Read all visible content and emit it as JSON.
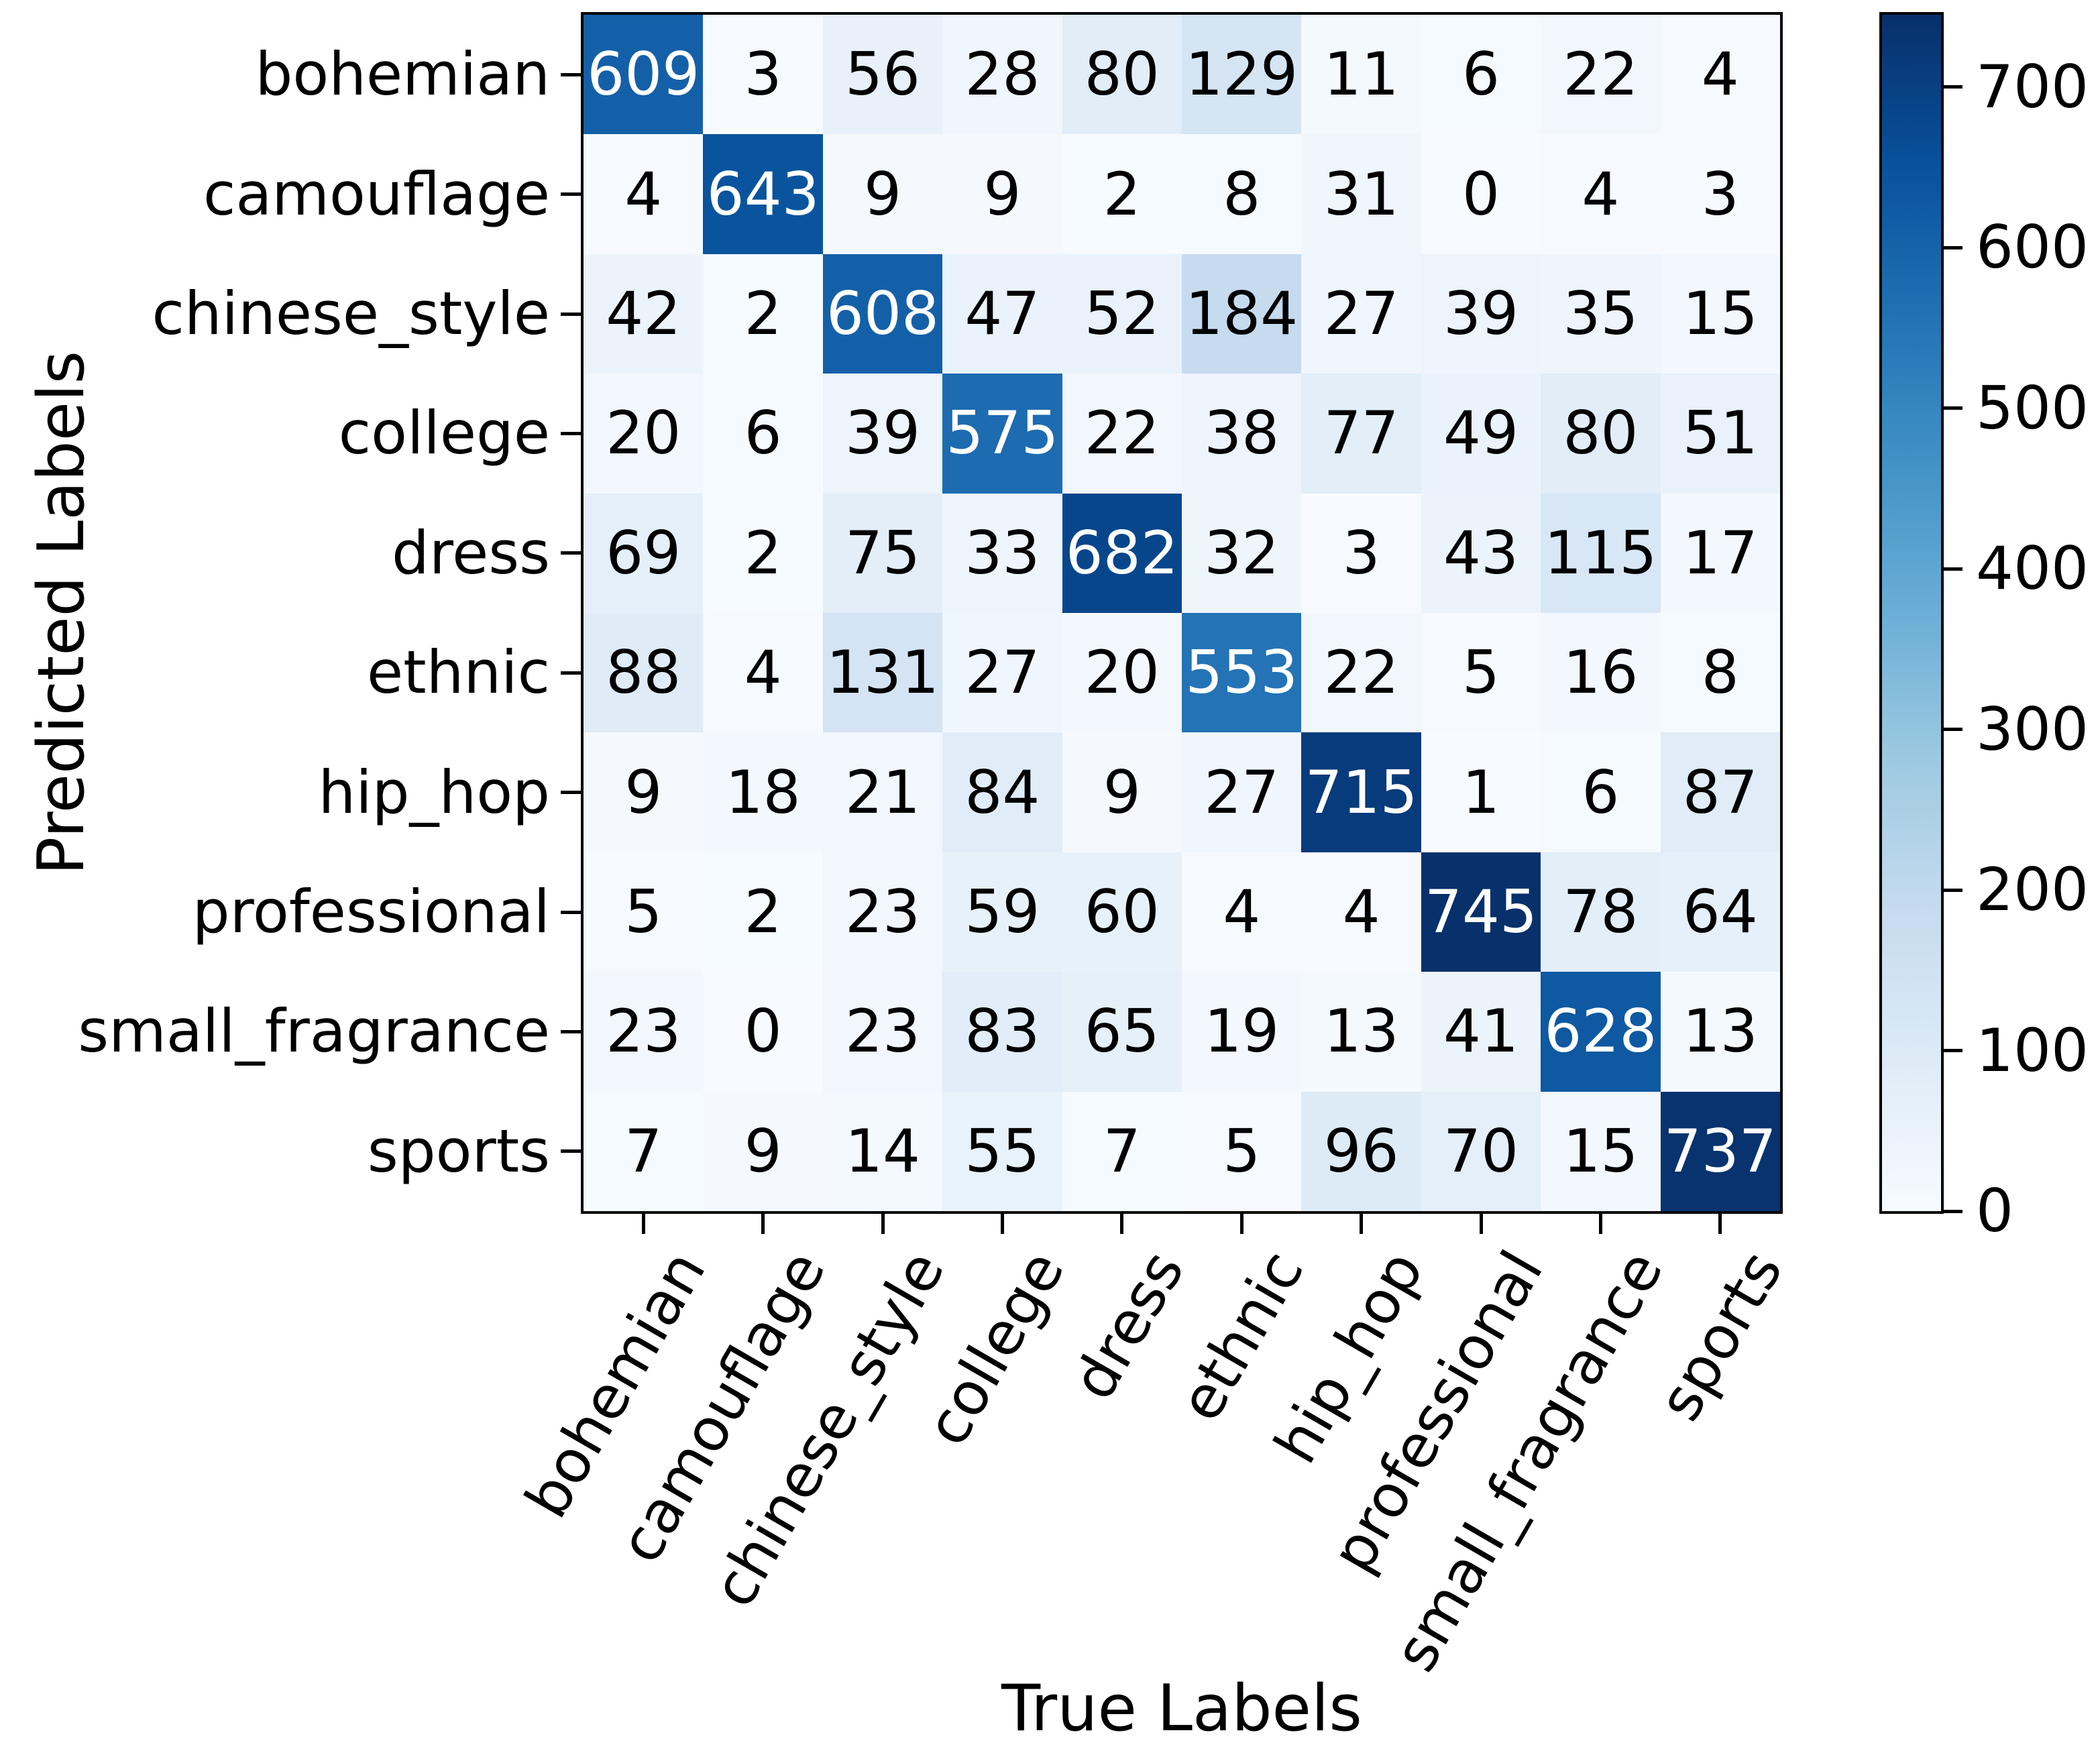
{
  "chart_data": {
    "type": "heatmap",
    "subtype": "confusion-matrix",
    "title": "",
    "xlabel": "True Labels",
    "ylabel": "Predicted Labels",
    "categories": [
      "bohemian",
      "camouflage",
      "chinese_style",
      "college",
      "dress",
      "ethnic",
      "hip_hop",
      "professional",
      "small_fragrance",
      "sports"
    ],
    "x_tick_labels": [
      "bohemian",
      "camouflage",
      "chinese_style",
      "college",
      "dress",
      "ethnic",
      "hip_hop",
      "professional",
      "small_fragrance",
      "sports"
    ],
    "y_tick_labels": [
      "bohemian",
      "camouflage",
      "chinese_style",
      "college",
      "dress",
      "ethnic",
      "hip_hop",
      "professional",
      "small_fragrance",
      "sports"
    ],
    "matrix": [
      [
        609,
        3,
        56,
        28,
        80,
        129,
        11,
        6,
        22,
        4
      ],
      [
        4,
        643,
        9,
        9,
        2,
        8,
        31,
        0,
        4,
        3
      ],
      [
        42,
        2,
        608,
        47,
        52,
        184,
        27,
        39,
        35,
        15
      ],
      [
        20,
        6,
        39,
        575,
        22,
        38,
        77,
        49,
        80,
        51
      ],
      [
        69,
        2,
        75,
        33,
        682,
        32,
        3,
        43,
        115,
        17
      ],
      [
        88,
        4,
        131,
        27,
        20,
        553,
        22,
        5,
        16,
        8
      ],
      [
        9,
        18,
        21,
        84,
        9,
        27,
        715,
        1,
        6,
        87
      ],
      [
        5,
        2,
        23,
        59,
        60,
        4,
        4,
        745,
        78,
        64
      ],
      [
        23,
        0,
        23,
        83,
        65,
        19,
        13,
        41,
        628,
        13
      ],
      [
        7,
        9,
        14,
        55,
        7,
        5,
        96,
        70,
        15,
        737
      ]
    ],
    "vmin": 0,
    "vmax": 745,
    "colorbar_ticks": [
      0,
      100,
      200,
      300,
      400,
      500,
      600,
      700
    ],
    "colorbar_position": "right",
    "colormap_name": "Blues",
    "colormap_stops": [
      "#f7fbff",
      "#deebf7",
      "#c6dbef",
      "#9ecae1",
      "#6baed6",
      "#4292c6",
      "#2171b5",
      "#08519c",
      "#08306b"
    ],
    "text_color_threshold": 372.5,
    "cell_text_color_light_bg": "#000000",
    "cell_text_color_dark_bg": "#ffffff",
    "axes_color": "#000000",
    "background_color": "#ffffff",
    "grid": false,
    "x_tick_rotation_deg": 60,
    "legend_position": "right-colorbar"
  }
}
